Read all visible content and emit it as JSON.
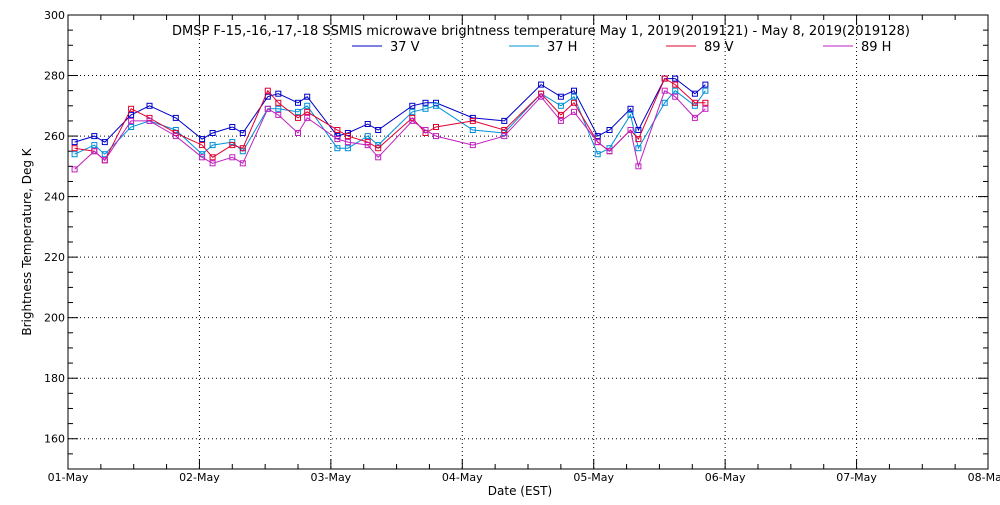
{
  "chart_data": {
    "type": "line",
    "title": "DMSP F-15,-16,-17,-18 SSMIS microwave brightness temperature May  1, 2019(2019121) - May  8, 2019(2019128)",
    "xlabel": "Date (EST)",
    "ylabel": "Brightness Temperature, Deg K",
    "xlim": [
      "2019-05-01",
      "2019-05-08"
    ],
    "ylim": [
      150,
      300
    ],
    "x_ticks": [
      "01-May",
      "02-May",
      "03-May",
      "04-May",
      "05-May",
      "06-May",
      "07-May",
      "08-May"
    ],
    "y_ticks": [
      160,
      180,
      200,
      220,
      240,
      260,
      280,
      300
    ],
    "grid": true,
    "legend_position": "top",
    "x_unit": "days since 2019-05-01 00:00 EST",
    "x": [
      0.05,
      0.2,
      0.28,
      0.48,
      0.62,
      0.82,
      1.02,
      1.1,
      1.25,
      1.33,
      1.52,
      1.6,
      1.75,
      1.82,
      2.05,
      2.13,
      2.28,
      2.36,
      2.62,
      2.72,
      2.8,
      3.08,
      3.32,
      3.6,
      3.75,
      3.85,
      4.03,
      4.12,
      4.28,
      4.34,
      4.54,
      4.62,
      4.77,
      4.85
    ],
    "series": [
      {
        "name": "37 V",
        "color": "#0000c8",
        "values": [
          258,
          260,
          258,
          267,
          270,
          266,
          259,
          261,
          263,
          261,
          273,
          274,
          271,
          273,
          260,
          261,
          264,
          262,
          270,
          271,
          271,
          266,
          265,
          277,
          273,
          275,
          260,
          262,
          269,
          262,
          279,
          279,
          274,
          277
        ]
      },
      {
        "name": "37 H",
        "color": "#0090d8",
        "values": [
          254,
          257,
          254,
          263,
          265,
          262,
          254,
          257,
          258,
          255,
          269,
          269,
          268,
          270,
          256,
          256,
          260,
          257,
          268,
          269,
          270,
          262,
          261,
          274,
          270,
          273,
          254,
          256,
          267,
          256,
          271,
          275,
          270,
          275
        ]
      },
      {
        "name": "89 V",
        "color": "#e00030",
        "values": [
          256,
          255,
          252,
          269,
          266,
          261,
          257,
          253,
          257,
          256,
          275,
          271,
          266,
          268,
          262,
          260,
          258,
          256,
          266,
          261,
          263,
          265,
          262,
          274,
          267,
          271,
          258,
          255,
          262,
          259,
          279,
          277,
          271,
          271
        ]
      },
      {
        "name": "89 H",
        "color": "#c020c0",
        "values": [
          249,
          255,
          252,
          265,
          265,
          260,
          253,
          251,
          253,
          251,
          269,
          267,
          261,
          266,
          259,
          258,
          257,
          253,
          265,
          262,
          260,
          257,
          260,
          273,
          265,
          268,
          258,
          255,
          262,
          250,
          275,
          273,
          266,
          269
        ]
      }
    ]
  }
}
